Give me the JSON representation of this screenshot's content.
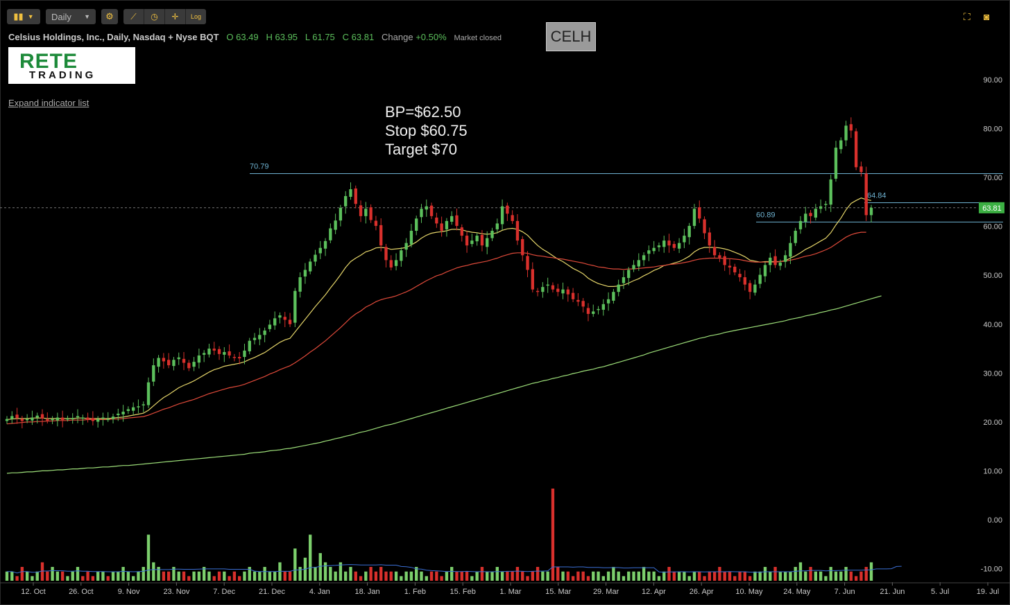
{
  "toolbar": {
    "chart_type_icon": "candlestick-icon",
    "interval": "Daily",
    "settings_icon": "gear-icon",
    "tools": [
      "indicator-icon",
      "clock-icon",
      "crosshair-icon",
      "Log"
    ],
    "right_icons": [
      "fullscreen-icon",
      "camera-icon"
    ],
    "accent_color": "#f0c040"
  },
  "info": {
    "name": "Celsius Holdings, Inc., Daily, Nasdaq + Nyse BQT",
    "open": "O 63.49",
    "high": "H 63.95",
    "low": "L 61.75",
    "close": "C 63.81",
    "change_label": "Change",
    "change_value": "+0.50%",
    "status": "Market closed"
  },
  "ticker": "CELH",
  "logo": {
    "line1": "RETE",
    "line2": "TRADING"
  },
  "expand_label": "Expand indicator list",
  "annotation": [
    "BP=$62.50",
    "Stop $60.75",
    "Target $70"
  ],
  "chart_data": {
    "type": "candlestick",
    "ylim": [
      -12,
      97
    ],
    "y_ticks": [
      90,
      80,
      70,
      60,
      50,
      40,
      30,
      20,
      10,
      0,
      -10
    ],
    "y_tick_labels": [
      "90.00",
      "80.00",
      "70.00",
      "60.00",
      "50.00",
      "40.00",
      "30.00",
      "20.00",
      "10.00",
      "0.00",
      "-10.00"
    ],
    "x_labels": [
      "12. Oct",
      "26. Oct",
      "9. Nov",
      "23. Nov",
      "7. Dec",
      "21. Dec",
      "4. Jan",
      "18. Jan",
      "1. Feb",
      "15. Feb",
      "1. Mar",
      "15. Mar",
      "29. Mar",
      "12. Apr",
      "26. Apr",
      "10. May",
      "24. May",
      "7. Jun",
      "21. Jun",
      "5. Jul",
      "19. Jul"
    ],
    "last_price": 63.81,
    "last_price_label": "63.81",
    "levels": [
      {
        "value": 70.79,
        "label": "70.79",
        "from": "Jan",
        "to": "Jul"
      },
      {
        "value": 64.84,
        "label": "64.84",
        "from": "Jun",
        "to": "Jul"
      },
      {
        "value": 60.89,
        "label": "60.89",
        "from": "May",
        "to": "Jul"
      }
    ],
    "closes": [
      20.6,
      21.2,
      20.8,
      20.2,
      20.6,
      20.9,
      21.3,
      20.7,
      20.3,
      20.6,
      20.9,
      20.4,
      20.7,
      20.8,
      21.2,
      20.9,
      20.5,
      20.2,
      20.6,
      20.9,
      20.6,
      21.1,
      21.7,
      22.1,
      22.6,
      23.0,
      23.2,
      23.6,
      28.1,
      31.6,
      33.1,
      32.4,
      31.6,
      32.7,
      33.2,
      32.1,
      31.0,
      32.3,
      33.6,
      34.1,
      35.0,
      34.6,
      33.9,
      34.3,
      33.6,
      33.3,
      33.0,
      34.6,
      36.6,
      37.2,
      37.8,
      38.7,
      39.9,
      41.2,
      41.8,
      40.9,
      40.0,
      46.8,
      49.6,
      51.1,
      52.8,
      54.2,
      55.6,
      57.0,
      59.6,
      61.2,
      63.8,
      66.2,
      67.6,
      64.6,
      62.1,
      63.6,
      61.3,
      60.1,
      56.1,
      53.1,
      51.6,
      53.1,
      55.1,
      56.6,
      59.1,
      61.6,
      63.6,
      64.1,
      62.1,
      60.6,
      59.1,
      61.1,
      62.1,
      60.1,
      58.1,
      56.1,
      57.1,
      58.1,
      56.1,
      57.6,
      59.1,
      60.6,
      64.1,
      62.6,
      61.1,
      57.1,
      54.1,
      51.1,
      47.1,
      46.6,
      47.6,
      48.1,
      47.1,
      46.6,
      47.1,
      46.1,
      45.1,
      44.6,
      43.6,
      42.1,
      42.6,
      43.1,
      44.1,
      45.1,
      46.6,
      48.1,
      49.6,
      51.1,
      52.1,
      53.1,
      54.1,
      55.1,
      55.6,
      56.1,
      57.1,
      56.1,
      55.6,
      56.6,
      58.1,
      60.1,
      63.6,
      61.6,
      58.6,
      56.1,
      54.1,
      53.6,
      52.1,
      51.6,
      50.6,
      49.6,
      48.1,
      46.6,
      48.1,
      50.1,
      52.1,
      53.6,
      52.1,
      52.6,
      54.1,
      56.6,
      59.1,
      61.1,
      62.6,
      62.1,
      63.6,
      64.1,
      64.6,
      69.6,
      76.1,
      77.6,
      80.6,
      79.6,
      72.1,
      71.1,
      62.3,
      63.81
    ],
    "series": [
      {
        "name": "EMA 20",
        "color": "#e6d66a",
        "values": [
          20.5,
          20.6,
          20.7,
          20.7,
          20.7,
          20.8,
          20.8,
          20.8,
          20.7,
          20.7,
          20.7,
          20.7,
          20.7,
          20.7,
          20.8,
          20.8,
          20.7,
          20.7,
          20.7,
          20.7,
          20.7,
          20.8,
          20.9,
          21.0,
          21.2,
          21.4,
          21.6,
          21.8,
          22.4,
          23.3,
          24.2,
          25.0,
          25.6,
          26.3,
          27.0,
          27.5,
          27.9,
          28.4,
          29.0,
          29.6,
          30.2,
          30.7,
          31.0,
          31.4,
          31.6,
          31.8,
          32.0,
          32.3,
          32.8,
          33.2,
          33.7,
          34.2,
          34.9,
          35.6,
          36.3,
          36.8,
          37.1,
          38.4,
          39.7,
          41.0,
          42.3,
          43.6,
          44.8,
          46.0,
          47.4,
          48.7,
          50.1,
          51.6,
          52.8,
          53.5,
          54.1,
          54.8,
          55.1,
          55.6,
          55.7,
          55.6,
          55.3,
          55.4,
          55.5,
          55.7,
          56.2,
          56.8,
          57.6,
          58.2,
          58.6,
          58.8,
          58.9,
          59.1,
          59.4,
          59.4,
          59.3,
          59.0,
          58.8,
          58.7,
          58.5,
          58.4,
          58.5,
          58.7,
          59.2,
          59.5,
          59.6,
          59.4,
          58.9,
          58.2,
          57.1,
          56.1,
          55.3,
          54.7,
          54.0,
          53.3,
          52.8,
          52.1,
          51.4,
          50.9,
          50.3,
          49.4,
          48.8,
          48.3,
          48.0,
          47.7,
          47.7,
          47.8,
          48.0,
          48.4,
          48.9,
          49.3,
          49.9,
          50.4,
          51.0,
          51.4,
          52.0,
          52.2,
          52.5,
          52.8,
          53.3,
          53.9,
          54.8,
          55.4,
          55.7,
          55.7,
          55.7,
          55.6,
          55.4,
          55.1,
          54.7,
          54.3,
          53.8,
          53.1,
          52.9,
          52.7,
          52.8,
          52.8,
          52.8,
          52.8,
          53.0,
          53.5,
          54.0,
          54.6,
          55.3,
          55.8,
          56.4,
          57.0,
          57.6,
          58.7,
          60.3,
          61.7,
          63.4,
          64.7,
          65.3,
          65.8,
          65.5,
          65.3
        ]
      },
      {
        "name": "EMA 50",
        "color": "#e04a3a",
        "values": [
          19.6,
          19.7,
          19.8,
          19.9,
          20.0,
          20.0,
          20.1,
          20.1,
          20.2,
          20.2,
          20.3,
          20.3,
          20.3,
          20.4,
          20.4,
          20.4,
          20.5,
          20.5,
          20.5,
          20.5,
          20.5,
          20.6,
          20.6,
          20.7,
          20.8,
          20.9,
          21.0,
          21.1,
          21.4,
          21.8,
          22.2,
          22.6,
          22.9,
          23.3,
          23.7,
          24.0,
          24.3,
          24.6,
          25.0,
          25.4,
          25.8,
          26.1,
          26.4,
          26.7,
          27.0,
          27.2,
          27.4,
          27.7,
          28.1,
          28.5,
          28.9,
          29.3,
          29.8,
          30.2,
          30.7,
          31.1,
          31.5,
          32.1,
          32.8,
          33.5,
          34.3,
          35.0,
          35.8,
          36.6,
          37.5,
          38.4,
          39.3,
          40.3,
          41.3,
          42.1,
          42.7,
          43.5,
          44.0,
          44.6,
          45.0,
          45.3,
          45.5,
          45.8,
          46.2,
          46.6,
          47.1,
          47.7,
          48.3,
          48.9,
          49.4,
          49.9,
          50.2,
          50.7,
          51.1,
          51.5,
          51.8,
          52.0,
          52.3,
          52.5,
          52.7,
          52.9,
          53.2,
          53.5,
          53.9,
          54.2,
          54.5,
          54.6,
          54.6,
          54.5,
          54.2,
          54.0,
          53.9,
          53.7,
          53.6,
          53.4,
          53.3,
          53.1,
          52.9,
          52.7,
          52.5,
          52.2,
          52.0,
          51.7,
          51.6,
          51.4,
          51.3,
          51.3,
          51.2,
          51.3,
          51.3,
          51.4,
          51.5,
          51.6,
          51.7,
          51.9,
          52.0,
          52.2,
          52.3,
          52.4,
          52.6,
          52.8,
          53.1,
          53.3,
          53.4,
          53.5,
          53.5,
          53.5,
          53.4,
          53.4,
          53.3,
          53.2,
          53.0,
          52.8,
          52.7,
          52.7,
          52.7,
          52.7,
          52.7,
          52.8,
          52.9,
          53.1,
          53.3,
          53.6,
          53.9,
          54.1,
          54.4,
          54.8,
          55.2,
          55.7,
          56.4,
          57.1,
          57.8,
          58.3,
          58.6,
          58.8,
          58.8
        ]
      },
      {
        "name": "SMA 200",
        "color": "#9ee07a",
        "values": [
          9.5,
          9.6,
          9.6,
          9.7,
          9.8,
          9.8,
          9.9,
          10.0,
          10.0,
          10.1,
          10.2,
          10.2,
          10.3,
          10.4,
          10.4,
          10.5,
          10.6,
          10.6,
          10.7,
          10.8,
          10.8,
          10.9,
          11.0,
          11.1,
          11.1,
          11.2,
          11.3,
          11.4,
          11.5,
          11.6,
          11.7,
          11.8,
          11.9,
          12.0,
          12.1,
          12.2,
          12.3,
          12.4,
          12.5,
          12.6,
          12.7,
          12.8,
          12.9,
          13.0,
          13.1,
          13.2,
          13.3,
          13.4,
          13.6,
          13.7,
          13.8,
          13.9,
          14.1,
          14.2,
          14.3,
          14.5,
          14.6,
          14.8,
          15.0,
          15.2,
          15.4,
          15.6,
          15.8,
          16.1,
          16.3,
          16.6,
          16.8,
          17.1,
          17.3,
          17.6,
          17.9,
          18.1,
          18.4,
          18.7,
          19.0,
          19.3,
          19.5,
          19.8,
          20.1,
          20.4,
          20.7,
          21.0,
          21.3,
          21.6,
          21.9,
          22.2,
          22.5,
          22.8,
          23.1,
          23.4,
          23.7,
          24.0,
          24.3,
          24.6,
          24.9,
          25.2,
          25.5,
          25.8,
          26.1,
          26.4,
          26.7,
          27.0,
          27.3,
          27.6,
          27.9,
          28.1,
          28.4,
          28.6,
          28.9,
          29.1,
          29.4,
          29.6,
          29.9,
          30.1,
          30.4,
          30.6,
          30.8,
          31.1,
          31.3,
          31.6,
          31.9,
          32.2,
          32.5,
          32.8,
          33.1,
          33.4,
          33.7,
          34.1,
          34.4,
          34.7,
          35.0,
          35.3,
          35.6,
          35.9,
          36.2,
          36.5,
          36.8,
          37.1,
          37.3,
          37.6,
          37.8,
          38.0,
          38.3,
          38.5,
          38.7,
          38.9,
          39.1,
          39.3,
          39.5,
          39.7,
          39.9,
          40.1,
          40.3,
          40.5,
          40.7,
          41.0,
          41.2,
          41.4,
          41.7,
          41.9,
          42.1,
          42.4,
          42.6,
          42.9,
          43.1,
          43.4,
          43.7,
          44.0,
          44.3,
          44.6,
          44.9,
          45.2,
          45.5,
          45.8
        ]
      }
    ],
    "volume": {
      "note": "relative units, drawn on the lower axis",
      "values": [
        2,
        2,
        1,
        3,
        2,
        1,
        2,
        4,
        2,
        3,
        2,
        2,
        1,
        2,
        3,
        1,
        2,
        1,
        2,
        2,
        1,
        2,
        2,
        3,
        2,
        1,
        2,
        3,
        10,
        4,
        3,
        2,
        2,
        3,
        2,
        2,
        1,
        2,
        2,
        3,
        2,
        1,
        2,
        2,
        1,
        2,
        1,
        2,
        3,
        2,
        2,
        3,
        2,
        2,
        4,
        2,
        2,
        7,
        3,
        5,
        10,
        3,
        6,
        4,
        3,
        2,
        4,
        2,
        3,
        2,
        1,
        2,
        3,
        2,
        3,
        2,
        2,
        2,
        1,
        2,
        2,
        3,
        2,
        1,
        2,
        2,
        1,
        2,
        3,
        2,
        2,
        2,
        1,
        2,
        3,
        2,
        2,
        3,
        2,
        2,
        2,
        3,
        2,
        1,
        2,
        3,
        2,
        2,
        20,
        3,
        2,
        2,
        1,
        2,
        2,
        1,
        2,
        2,
        1,
        2,
        3,
        2,
        1,
        2,
        2,
        2,
        3,
        2,
        2,
        1,
        2,
        3,
        2,
        2,
        2,
        1,
        2,
        2,
        1,
        2,
        2,
        3,
        2,
        2,
        1,
        2,
        2,
        1,
        2,
        2,
        3,
        2,
        3,
        2,
        2,
        2,
        3,
        4,
        2,
        3,
        2,
        2,
        1,
        3,
        2,
        2,
        3,
        2,
        1,
        2,
        3,
        4,
        6,
        3,
        2,
        3,
        12,
        4
      ]
    }
  }
}
